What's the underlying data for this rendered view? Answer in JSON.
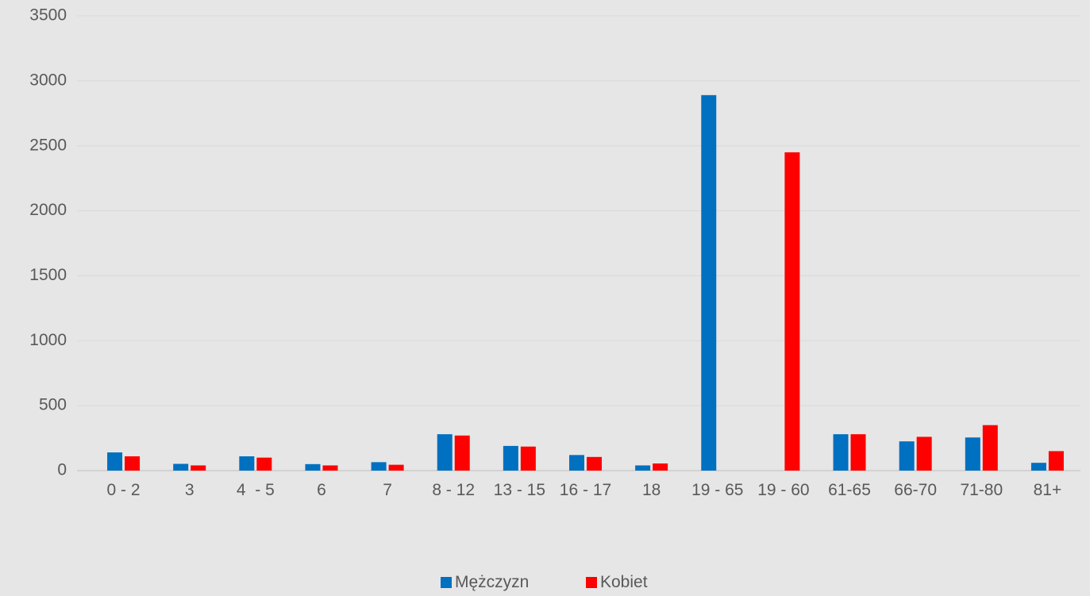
{
  "chart_data": {
    "type": "bar",
    "categories": [
      "0 - 2",
      "3",
      "4  - 5",
      "6",
      "7",
      "8 - 12",
      "13 - 15",
      "16 - 17",
      "18",
      "19 - 65",
      "19 - 60",
      "61-65",
      "66-70",
      "71-80",
      "81+"
    ],
    "series": [
      {
        "name": "Mężczyzn",
        "color": "#0070c0",
        "values": [
          140,
          52,
          110,
          50,
          65,
          280,
          190,
          120,
          40,
          2890,
          0,
          280,
          225,
          255,
          60
        ]
      },
      {
        "name": "Kobiet",
        "color": "#ff0000",
        "values": [
          110,
          40,
          100,
          40,
          45,
          270,
          185,
          105,
          55,
          0,
          2450,
          280,
          260,
          350,
          150
        ]
      }
    ],
    "ylim": [
      0,
      3500
    ],
    "yticks": [
      0,
      500,
      1000,
      1500,
      2000,
      2500,
      3000,
      3500
    ],
    "grid": true,
    "legend": "bottom"
  }
}
